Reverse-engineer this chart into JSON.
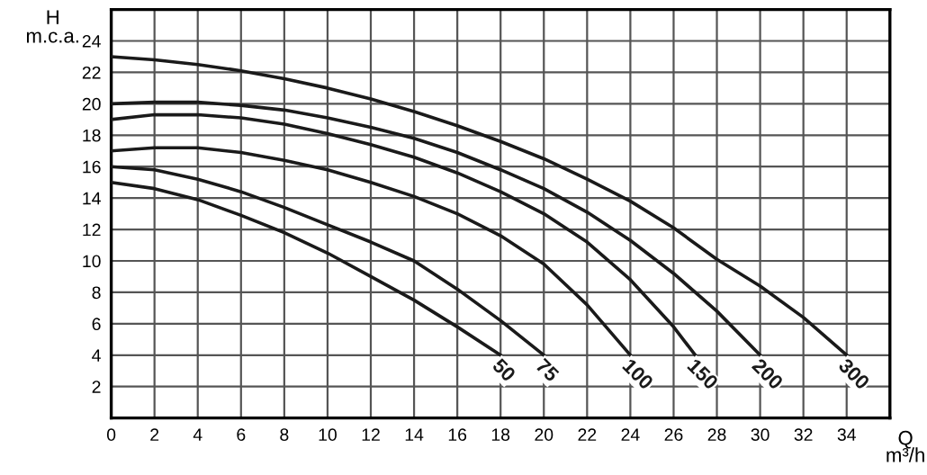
{
  "chart_data": {
    "type": "line",
    "xlabel": "Q\nm³/h",
    "ylabel": "H\nm.c.a.",
    "xlim": [
      0,
      36
    ],
    "ylim": [
      0,
      26
    ],
    "xticks": [
      0,
      2,
      4,
      6,
      8,
      10,
      12,
      14,
      16,
      18,
      20,
      22,
      24,
      26,
      28,
      30,
      32,
      34
    ],
    "yticks": [
      2,
      4,
      6,
      8,
      10,
      12,
      14,
      16,
      18,
      20,
      22,
      24
    ],
    "grid": true,
    "marker": "none",
    "line_style": "solid",
    "series": [
      {
        "name": "50",
        "color": "#1a1a1a",
        "x": [
          0,
          2,
          4,
          6,
          8,
          10,
          12,
          14,
          16,
          18
        ],
        "values": [
          15,
          14.6,
          13.9,
          12.9,
          11.8,
          10.5,
          9,
          7.5,
          5.8,
          4
        ]
      },
      {
        "name": "75",
        "color": "#1a1a1a",
        "x": [
          0,
          2,
          4,
          6,
          8,
          10,
          12,
          14,
          16,
          18,
          20
        ],
        "values": [
          16,
          15.8,
          15.2,
          14.4,
          13.4,
          12.3,
          11.2,
          10,
          8.2,
          6.2,
          4
        ]
      },
      {
        "name": "100",
        "color": "#1a1a1a",
        "x": [
          0,
          2,
          4,
          6,
          8,
          10,
          12,
          14,
          16,
          18,
          20,
          22,
          24
        ],
        "values": [
          17,
          17.2,
          17.2,
          16.9,
          16.4,
          15.8,
          15,
          14.1,
          13,
          11.6,
          9.8,
          7.2,
          4
        ]
      },
      {
        "name": "150",
        "color": "#1a1a1a",
        "x": [
          0,
          2,
          4,
          6,
          8,
          10,
          12,
          14,
          16,
          18,
          20,
          22,
          24,
          26,
          27
        ],
        "values": [
          19,
          19.3,
          19.3,
          19.1,
          18.7,
          18.1,
          17.4,
          16.6,
          15.6,
          14.4,
          13,
          11.2,
          8.8,
          5.8,
          4
        ]
      },
      {
        "name": "200",
        "color": "#1a1a1a",
        "x": [
          0,
          2,
          4,
          6,
          8,
          10,
          12,
          14,
          16,
          18,
          20,
          22,
          24,
          26,
          28,
          30
        ],
        "values": [
          20,
          20.1,
          20.1,
          19.9,
          19.6,
          19.1,
          18.5,
          17.8,
          16.9,
          15.8,
          14.6,
          13.1,
          11.3,
          9.2,
          6.8,
          4
        ]
      },
      {
        "name": "300",
        "color": "#1a1a1a",
        "x": [
          0,
          2,
          4,
          6,
          8,
          10,
          12,
          14,
          16,
          18,
          20,
          22,
          24,
          26,
          28,
          30,
          32,
          34
        ],
        "values": [
          23,
          22.8,
          22.5,
          22.1,
          21.6,
          21,
          20.3,
          19.5,
          18.6,
          17.6,
          16.5,
          15.2,
          13.8,
          12.1,
          10.1,
          8.4,
          6.4,
          4
        ]
      }
    ]
  }
}
